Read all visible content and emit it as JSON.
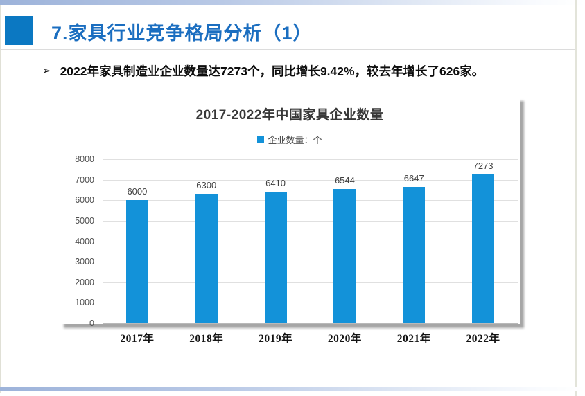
{
  "page": {
    "title": "7.家具行业竞争格局分析（1）",
    "bullet_marker": "➢",
    "bullet_text": "2022年家具制造业企业数量达7273个，同比增长9.42%，较去年增长了626家。"
  },
  "chart_data": {
    "type": "bar",
    "title": "2017-2022年中国家具企业数量",
    "legend": {
      "position": "top",
      "entries": [
        {
          "label": "企业数量：个",
          "color": "#1392d9"
        }
      ]
    },
    "categories": [
      "2017年",
      "2018年",
      "2019年",
      "2020年",
      "2021年",
      "2022年"
    ],
    "series": [
      {
        "name": "企业数量：个",
        "values": [
          6000,
          6300,
          6410,
          6544,
          6647,
          7273
        ],
        "color": "#1392d9"
      }
    ],
    "data_labels": [
      6000,
      6300,
      6410,
      6544,
      6647,
      7273
    ],
    "ylim": [
      0,
      8000
    ],
    "yticks": [
      0,
      1000,
      2000,
      3000,
      4000,
      5000,
      6000,
      7000,
      8000
    ],
    "grid": true,
    "xlabel": "",
    "ylabel": ""
  },
  "colors": {
    "bar_blue": "#1392d9",
    "title_blue": "#1b6ec0",
    "accent_square_blue": "#0b78c2",
    "grid_line": "#e0e0e0",
    "chart_text": "#404040",
    "axis_text": "#4f4f4f",
    "strip_gradient_left": "#9db3da",
    "card_shadow": "#a6a6a6"
  }
}
